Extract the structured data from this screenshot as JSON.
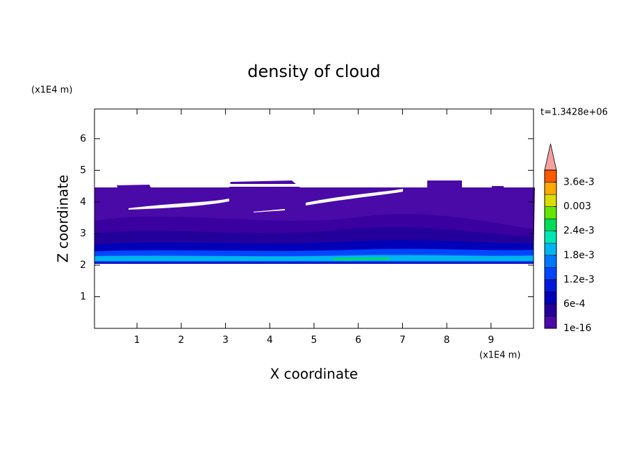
{
  "chart_data": {
    "type": "contour",
    "title": "density of cloud",
    "x_label": "X coordinate",
    "y_label": "Z coordinate",
    "x_unit": "(x1E4 m)",
    "y_unit": "(x1E4 m)",
    "time_label": "t=1.3428e+06",
    "xlim": [
      0.04,
      9.96
    ],
    "xticks": [
      1,
      2,
      3,
      4,
      5,
      6,
      7,
      8,
      9
    ],
    "ylim": [
      0,
      6.94
    ],
    "yticks": [
      1,
      2,
      3,
      4,
      5,
      6
    ],
    "colorbar": {
      "levels": [
        1e-16,
        0.0003,
        0.0006,
        0.0009,
        0.0012,
        0.0015,
        0.0018,
        0.0021,
        0.0024,
        0.0027,
        0.003,
        0.0033,
        0.0036,
        0.0039
      ],
      "colors": [
        "#4a0aa8",
        "#24009a",
        "#0000b8",
        "#0018dc",
        "#0046ff",
        "#0078ff",
        "#00b4f0",
        "#00e6b4",
        "#00dc5a",
        "#64e600",
        "#dcdc00",
        "#ffaa00",
        "#ff5a00"
      ],
      "extend_color": "#f4a0a0",
      "ticks": [
        1e-16,
        {
          "value": 0.0006,
          "label": "6e-4"
        },
        {
          "value": 0.0012,
          "label": "1.2e-3"
        },
        {
          "value": 0.0018,
          "label": "1.8e-3"
        },
        {
          "value": 0.0024,
          "label": "2.4e-3"
        },
        0.003,
        {
          "value": 0.0036,
          "label": "3.6e-3"
        }
      ]
    }
  }
}
